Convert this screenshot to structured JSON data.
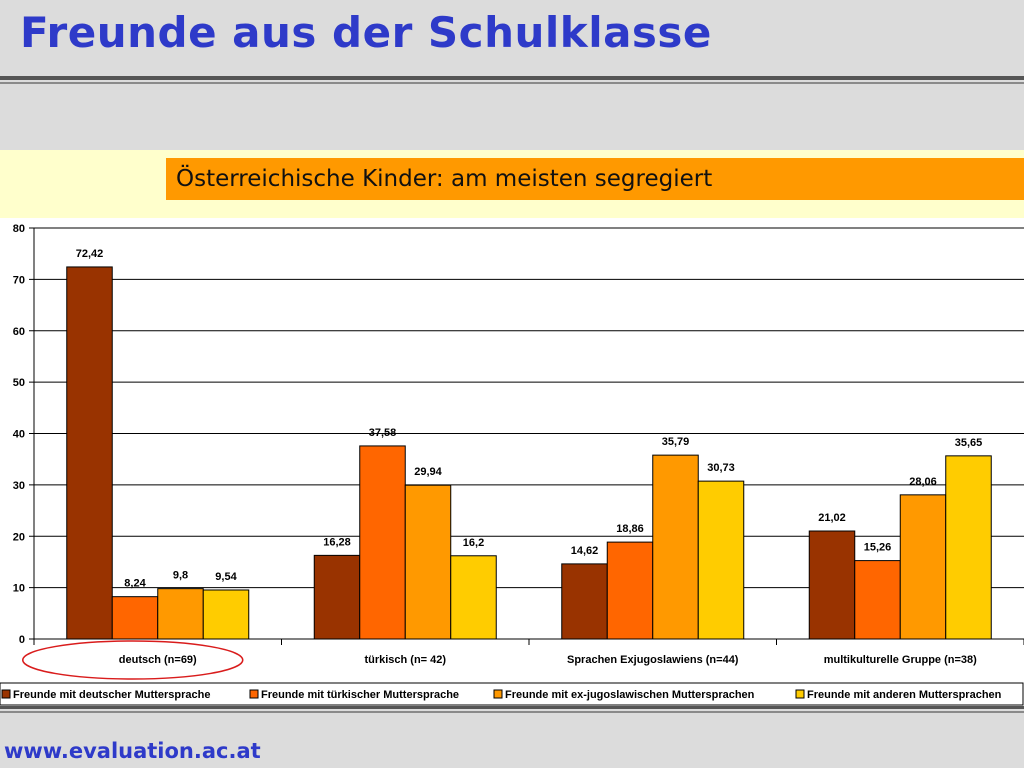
{
  "title": "Freunde aus der Schulklasse",
  "footer": "www.evaluation.ac.at",
  "chart_data": {
    "type": "bar",
    "title": "",
    "subtitle": "Österreichische Kinder: am meisten segregiert",
    "xlabel": "",
    "ylabel": "",
    "ylim": [
      0,
      80
    ],
    "yticks": [
      0,
      10,
      20,
      30,
      40,
      50,
      60,
      70,
      80
    ],
    "grid": true,
    "legend": "bottom",
    "categories": [
      "deutsch (n=69)",
      "türkisch (n= 42)",
      "Sprachen Exjugoslawiens (n=44)",
      "multikulturelle Gruppe (n=38)"
    ],
    "highlighted_category": "deutsch (n=69)",
    "series": [
      {
        "name": "Freunde mit deutscher Muttersprache",
        "color": "#993300",
        "values": [
          72.42,
          16.28,
          14.62,
          21.02
        ],
        "labels": [
          "72,42",
          "16,28",
          "14,62",
          "21,02"
        ]
      },
      {
        "name": "Freunde mit türkischer Muttersprache",
        "color": "#ff6600",
        "values": [
          8.24,
          37.58,
          18.86,
          15.26
        ],
        "labels": [
          "8,24",
          "37,58",
          "18,86",
          "15,26"
        ]
      },
      {
        "name": "Freunde mit ex-jugoslawischen Muttersprachen",
        "color": "#ff9900",
        "values": [
          9.8,
          29.94,
          35.79,
          28.06
        ],
        "labels": [
          "9,8",
          "29,94",
          "35,79",
          "28,06"
        ]
      },
      {
        "name": "Freunde mit anderen Muttersprachen",
        "color": "#ffcc00",
        "values": [
          9.54,
          16.2,
          30.73,
          35.65
        ],
        "labels": [
          "9,54",
          "16,2",
          "30,73",
          "35,65"
        ]
      }
    ]
  }
}
